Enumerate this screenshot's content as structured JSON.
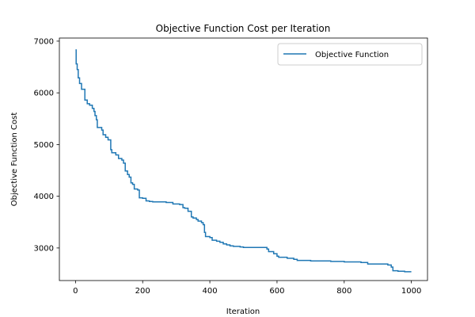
{
  "chart_data": {
    "type": "line",
    "title": "Objective Function Cost per Iteration",
    "xlabel": "Iteration",
    "ylabel": "Objective Function Cost",
    "xlim": [
      -48,
      1048
    ],
    "ylim": [
      2370,
      7060
    ],
    "xticks": [
      0,
      200,
      400,
      600,
      800,
      1000
    ],
    "yticks": [
      3000,
      4000,
      5000,
      6000,
      7000
    ],
    "grid": false,
    "legend_position": "top-right",
    "series": [
      {
        "name": "Objective Function",
        "color": "#1f77b4",
        "step": true,
        "points": [
          [
            0,
            6830
          ],
          [
            2,
            6560
          ],
          [
            5,
            6450
          ],
          [
            8,
            6290
          ],
          [
            12,
            6180
          ],
          [
            18,
            6070
          ],
          [
            28,
            5860
          ],
          [
            35,
            5790
          ],
          [
            42,
            5760
          ],
          [
            50,
            5700
          ],
          [
            55,
            5640
          ],
          [
            58,
            5560
          ],
          [
            62,
            5480
          ],
          [
            65,
            5330
          ],
          [
            78,
            5280
          ],
          [
            82,
            5190
          ],
          [
            90,
            5140
          ],
          [
            97,
            5090
          ],
          [
            105,
            4900
          ],
          [
            108,
            4840
          ],
          [
            120,
            4800
          ],
          [
            128,
            4730
          ],
          [
            138,
            4700
          ],
          [
            143,
            4640
          ],
          [
            148,
            4490
          ],
          [
            155,
            4420
          ],
          [
            160,
            4370
          ],
          [
            165,
            4260
          ],
          [
            170,
            4230
          ],
          [
            175,
            4140
          ],
          [
            185,
            4120
          ],
          [
            190,
            3970
          ],
          [
            200,
            3960
          ],
          [
            210,
            3910
          ],
          [
            220,
            3900
          ],
          [
            230,
            3890
          ],
          [
            270,
            3880
          ],
          [
            290,
            3850
          ],
          [
            310,
            3840
          ],
          [
            320,
            3780
          ],
          [
            325,
            3770
          ],
          [
            335,
            3710
          ],
          [
            345,
            3600
          ],
          [
            350,
            3580
          ],
          [
            360,
            3550
          ],
          [
            365,
            3520
          ],
          [
            375,
            3490
          ],
          [
            380,
            3450
          ],
          [
            384,
            3300
          ],
          [
            387,
            3220
          ],
          [
            400,
            3200
          ],
          [
            407,
            3150
          ],
          [
            420,
            3130
          ],
          [
            430,
            3110
          ],
          [
            440,
            3080
          ],
          [
            450,
            3060
          ],
          [
            460,
            3040
          ],
          [
            470,
            3030
          ],
          [
            490,
            3020
          ],
          [
            500,
            3010
          ],
          [
            570,
            2980
          ],
          [
            575,
            2930
          ],
          [
            590,
            2890
          ],
          [
            600,
            2840
          ],
          [
            605,
            2820
          ],
          [
            630,
            2800
          ],
          [
            650,
            2780
          ],
          [
            660,
            2760
          ],
          [
            700,
            2750
          ],
          [
            760,
            2740
          ],
          [
            800,
            2730
          ],
          [
            850,
            2720
          ],
          [
            870,
            2690
          ],
          [
            930,
            2670
          ],
          [
            940,
            2630
          ],
          [
            945,
            2560
          ],
          [
            960,
            2550
          ],
          [
            980,
            2540
          ],
          [
            1000,
            2540
          ]
        ]
      }
    ]
  }
}
